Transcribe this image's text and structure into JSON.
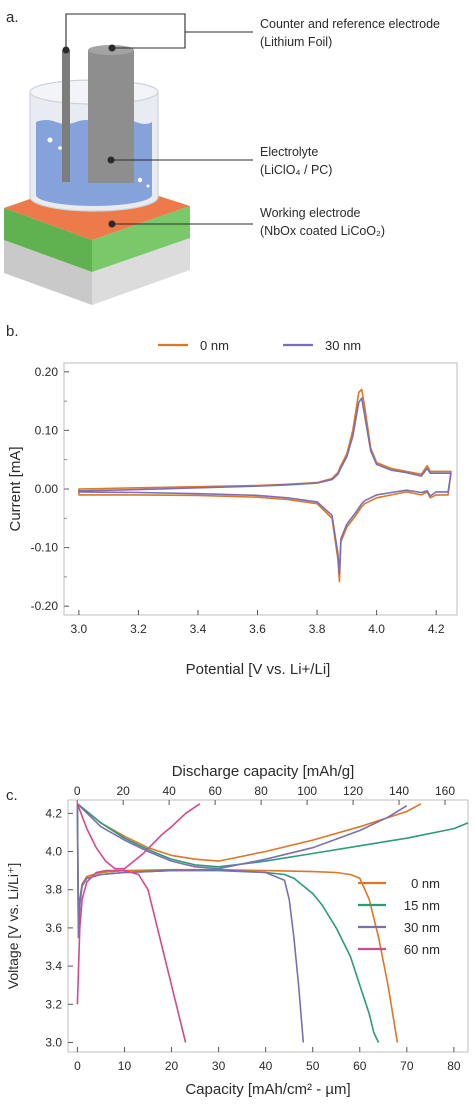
{
  "panel_a": {
    "label": "a.",
    "callouts": [
      {
        "line1": "Counter and reference electrode",
        "line2": "(Lithium Foil)"
      },
      {
        "line1": "Electrolyte",
        "line2": "(LiClO₄ / PC)"
      },
      {
        "line1": "Working electrode",
        "line2": "(NbOx coated LiCoO₂)"
      }
    ],
    "colors": {
      "electrolyte": "#7f9fd8",
      "substrate_top": "#e8774a",
      "green_layer": "#6bbf59",
      "base": "#cfcfcf",
      "foil": "#8c8c8c"
    }
  },
  "panel_b_label": "b.",
  "panel_c_label": "c.",
  "chart_data": [
    {
      "type": "line",
      "title": "",
      "xlabel": "Potential [V vs. Li+/Li]",
      "ylabel": "Current [mA]",
      "xlim": [
        2.95,
        4.27
      ],
      "ylim": [
        -0.215,
        0.215
      ],
      "xticks": [
        "3.0",
        "3.2",
        "3.4",
        "3.6",
        "3.8",
        "4.0",
        "4.2"
      ],
      "xtick_values": [
        3.0,
        3.2,
        3.4,
        3.6,
        3.8,
        4.0,
        4.2
      ],
      "yticks": [
        "0.20",
        "0.10",
        "0.00",
        "-0.10",
        "-0.20"
      ],
      "ytick_values": [
        0.2,
        0.1,
        0.0,
        -0.1,
        -0.2
      ],
      "legend_position": "top",
      "series": [
        {
          "name": "0 nm",
          "color": "#d9772a",
          "x": [
            3.0,
            3.2,
            3.4,
            3.6,
            3.7,
            3.8,
            3.85,
            3.87,
            3.88,
            3.9,
            3.92,
            3.94,
            3.95,
            3.96,
            3.98,
            4.0,
            4.05,
            4.1,
            4.15,
            4.17,
            4.18,
            4.2,
            4.24,
            4.25,
            4.24,
            4.2,
            4.18,
            4.17,
            4.15,
            4.1,
            4.05,
            4.0,
            3.98,
            3.96,
            3.95,
            3.93,
            3.9,
            3.88,
            3.875,
            3.87,
            3.85,
            3.8,
            3.7,
            3.6,
            3.4,
            3.2,
            3.0
          ],
          "y": [
            0.0,
            0.002,
            0.004,
            0.006,
            0.008,
            0.011,
            0.018,
            0.028,
            0.04,
            0.06,
            0.1,
            0.165,
            0.17,
            0.14,
            0.07,
            0.045,
            0.035,
            0.03,
            0.025,
            0.04,
            0.03,
            0.03,
            0.03,
            0.03,
            -0.01,
            -0.01,
            -0.015,
            -0.005,
            -0.01,
            -0.005,
            -0.01,
            -0.015,
            -0.02,
            -0.025,
            -0.03,
            -0.045,
            -0.065,
            -0.09,
            -0.158,
            -0.12,
            -0.05,
            -0.025,
            -0.018,
            -0.014,
            -0.011,
            -0.01,
            -0.01
          ]
        },
        {
          "name": "30 nm",
          "color": "#7c6fb0",
          "x": [
            3.0,
            3.2,
            3.4,
            3.6,
            3.7,
            3.8,
            3.85,
            3.87,
            3.88,
            3.9,
            3.92,
            3.94,
            3.95,
            3.96,
            3.98,
            4.0,
            4.05,
            4.1,
            4.15,
            4.17,
            4.18,
            4.2,
            4.24,
            4.25,
            4.24,
            4.2,
            4.18,
            4.17,
            4.15,
            4.1,
            4.05,
            4.0,
            3.98,
            3.96,
            3.95,
            3.93,
            3.9,
            3.88,
            3.875,
            3.87,
            3.85,
            3.8,
            3.7,
            3.6,
            3.4,
            3.2,
            3.0
          ],
          "y": [
            -0.003,
            -0.001,
            0.002,
            0.005,
            0.007,
            0.01,
            0.016,
            0.025,
            0.036,
            0.055,
            0.09,
            0.148,
            0.155,
            0.125,
            0.065,
            0.042,
            0.032,
            0.028,
            0.022,
            0.035,
            0.027,
            0.027,
            0.027,
            0.027,
            -0.005,
            -0.005,
            -0.012,
            -0.003,
            -0.006,
            -0.002,
            -0.006,
            -0.01,
            -0.015,
            -0.02,
            -0.025,
            -0.04,
            -0.06,
            -0.085,
            -0.145,
            -0.11,
            -0.045,
            -0.022,
            -0.015,
            -0.011,
            -0.008,
            -0.006,
            -0.005
          ]
        }
      ]
    },
    {
      "type": "line",
      "title": "",
      "xlabel": "Capacity [mAh/cm² - µm]",
      "x2label": "Discharge capacity [mAh/g]",
      "ylabel": "Voltage [V vs. Li/Li⁺]",
      "xlim": [
        -2,
        83
      ],
      "ylim": [
        2.95,
        4.27
      ],
      "x2lim": [
        -4,
        170
      ],
      "xticks": [
        "0",
        "10",
        "20",
        "30",
        "40",
        "50",
        "60",
        "70",
        "80"
      ],
      "xtick_values": [
        0,
        10,
        20,
        30,
        40,
        50,
        60,
        70,
        80
      ],
      "x2ticks": [
        "0",
        "20",
        "40",
        "60",
        "80",
        "100",
        "120",
        "140",
        "160"
      ],
      "x2tick_values": [
        0,
        20,
        40,
        60,
        80,
        100,
        120,
        140,
        160
      ],
      "yticks": [
        "4.2",
        "4.0",
        "3.8",
        "3.6",
        "3.4",
        "3.2",
        "3.0"
      ],
      "ytick_values": [
        4.2,
        4.0,
        3.8,
        3.6,
        3.4,
        3.2,
        3.0
      ],
      "legend_position": "right",
      "series": [
        {
          "name": "0 nm",
          "color": "#d9772a",
          "discharge": {
            "x": [
              0,
              0.2,
              0.5,
              1,
              2,
              5,
              10,
              20,
              30,
              40,
              50,
              55,
              58,
              60,
              62,
              64,
              66,
              67,
              68
            ],
            "y": [
              4.25,
              3.6,
              3.75,
              3.83,
              3.87,
              3.89,
              3.9,
              3.905,
              3.905,
              3.9,
              3.895,
              3.89,
              3.88,
              3.86,
              3.75,
              3.55,
              3.3,
              3.15,
              3.0
            ]
          },
          "charge": {
            "x": [
              0,
              5,
              10,
              15,
              20,
              25,
              30,
              40,
              50,
              60,
              70,
              73
            ],
            "y": [
              4.25,
              4.15,
              4.08,
              4.02,
              3.98,
              3.96,
              3.95,
              4.0,
              4.06,
              4.13,
              4.21,
              4.25
            ]
          }
        },
        {
          "name": "15 nm",
          "color": "#2e9a7a",
          "discharge": {
            "x": [
              0,
              0.2,
              0.5,
              1,
              2,
              5,
              10,
              20,
              30,
              40,
              44,
              46,
              48,
              50,
              52,
              55,
              58,
              60,
              62,
              63,
              64
            ],
            "y": [
              4.25,
              3.6,
              3.75,
              3.82,
              3.86,
              3.88,
              3.89,
              3.9,
              3.9,
              3.89,
              3.88,
              3.86,
              3.82,
              3.78,
              3.72,
              3.6,
              3.45,
              3.3,
              3.15,
              3.05,
              3.0
            ]
          },
          "charge": {
            "x": [
              0,
              5,
              10,
              15,
              20,
              25,
              30,
              40,
              50,
              60,
              70,
              80,
              83
            ],
            "y": [
              4.25,
              4.15,
              4.07,
              4.01,
              3.96,
              3.93,
              3.92,
              3.95,
              3.99,
              4.03,
              4.07,
              4.12,
              4.15
            ]
          }
        },
        {
          "name": "30 nm",
          "color": "#7c6fb0",
          "discharge": {
            "x": [
              0,
              0.2,
              0.5,
              1,
              2,
              5,
              10,
              20,
              30,
              40,
              44,
              45,
              46,
              47,
              48
            ],
            "y": [
              4.25,
              3.55,
              3.72,
              3.82,
              3.86,
              3.88,
              3.89,
              3.9,
              3.905,
              3.89,
              3.85,
              3.75,
              3.55,
              3.3,
              3.0
            ]
          },
          "charge": {
            "x": [
              0,
              5,
              10,
              15,
              20,
              25,
              30,
              40,
              50,
              60,
              66,
              70
            ],
            "y": [
              4.25,
              4.13,
              4.06,
              4.0,
              3.95,
              3.92,
              3.91,
              3.96,
              4.02,
              4.11,
              4.18,
              4.24
            ]
          }
        },
        {
          "name": "60 nm",
          "color": "#d04a8e",
          "discharge": {
            "x": [
              0,
              0.5,
              1,
              2,
              4,
              6,
              10,
              13,
              15,
              16,
              17,
              18,
              20,
              22,
              23
            ],
            "y": [
              3.2,
              3.6,
              3.75,
              3.84,
              3.89,
              3.9,
              3.9,
              3.88,
              3.8,
              3.7,
              3.6,
              3.5,
              3.3,
              3.1,
              3.0
            ]
          },
          "charge": {
            "x": [
              0,
              2,
              4,
              6,
              8,
              10,
              12,
              14,
              16,
              18,
              20,
              23,
              26
            ],
            "y": [
              4.25,
              4.12,
              4.02,
              3.95,
              3.91,
              3.91,
              3.95,
              3.99,
              4.04,
              4.09,
              4.13,
              4.2,
              4.25
            ]
          }
        }
      ]
    }
  ]
}
